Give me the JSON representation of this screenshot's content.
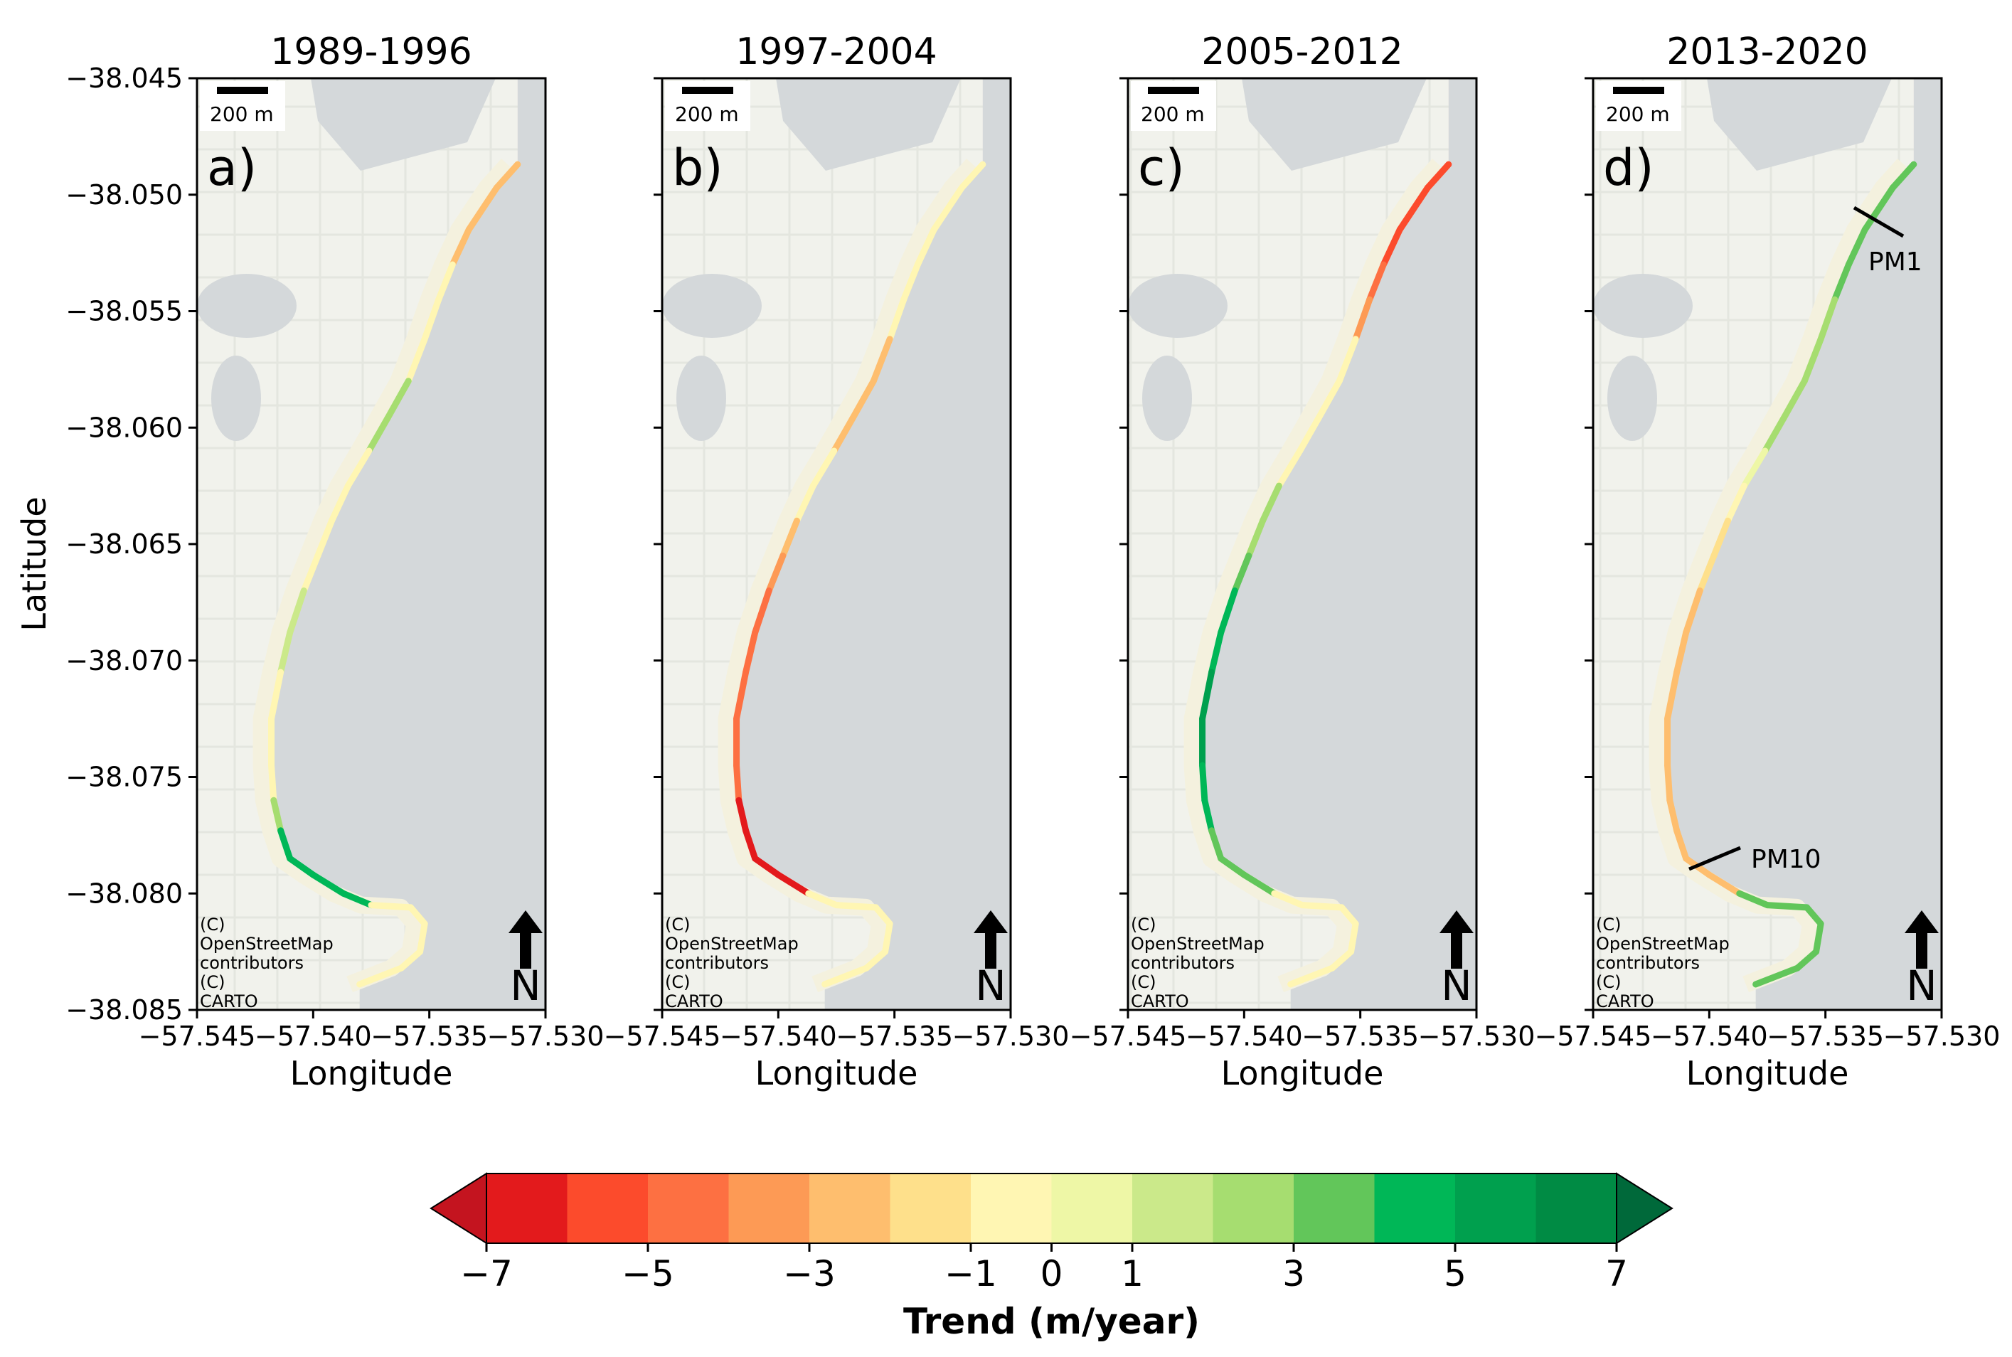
{
  "figure": {
    "ylabel": "Latitude",
    "xlabel": "Longitude",
    "scale_bar_label": "200 m",
    "north_label": "N",
    "credit_lines": [
      "(C)",
      "OpenStreetMap",
      "contributors",
      "(C)",
      "CARTO"
    ]
  },
  "axes": {
    "x_ticks": [
      "−57.545",
      "−57.540",
      "−57.535",
      "−57.530"
    ],
    "y_ticks": [
      "−38.045",
      "−38.050",
      "−38.055",
      "−38.060",
      "−38.065",
      "−38.070",
      "−38.075",
      "−38.080",
      "−38.085"
    ]
  },
  "panels": [
    {
      "title": "1989-1996",
      "letter": "a)"
    },
    {
      "title": "1997-2004",
      "letter": "b)"
    },
    {
      "title": "2005-2012",
      "letter": "c)"
    },
    {
      "title": "2013-2020",
      "letter": "d)"
    }
  ],
  "transects": {
    "pm1": "PM1",
    "pm10": "PM10"
  },
  "colorbar": {
    "label": "Trend (m/year)",
    "ticks": [
      "−7",
      "−5",
      "−3",
      "−1",
      "0",
      "1",
      "3",
      "5",
      "7"
    ],
    "tick_values": [
      -7,
      -5,
      -3,
      -1,
      0,
      1,
      3,
      5,
      7
    ],
    "bins": [
      -7,
      -6,
      -5,
      -4,
      -3,
      -2,
      -1,
      0,
      1,
      2,
      3,
      4,
      5,
      6,
      7
    ],
    "colors": [
      "#e31a1c",
      "#fc4b2c",
      "#fd7042",
      "#fd9a55",
      "#febe6e",
      "#fee08b",
      "#fff6b3",
      "#eef7a6",
      "#cbe98a",
      "#a6dd70",
      "#62c65a",
      "#00b757",
      "#00a04e",
      "#008b44"
    ],
    "under_color": "#c4141f",
    "over_color": "#00693a"
  },
  "chart_data": {
    "type": "map",
    "x_range": [
      -57.545,
      -57.53
    ],
    "y_range": [
      -38.085,
      -38.045
    ],
    "shoreline": [
      [
        -57.5312,
        -38.0487
      ],
      [
        -57.5321,
        -38.0497
      ],
      [
        -57.5333,
        -38.0515
      ],
      [
        -57.534,
        -38.053
      ],
      [
        -57.5346,
        -38.0545
      ],
      [
        -57.5352,
        -38.0562
      ],
      [
        -57.5359,
        -38.058
      ],
      [
        -57.5368,
        -38.0596
      ],
      [
        -57.5376,
        -38.061
      ],
      [
        -57.5385,
        -38.0625
      ],
      [
        -57.5392,
        -38.064
      ],
      [
        -57.5398,
        -38.0655
      ],
      [
        -57.5404,
        -38.067
      ],
      [
        -57.541,
        -38.0688
      ],
      [
        -57.5414,
        -38.0705
      ],
      [
        -57.5418,
        -38.0725
      ],
      [
        -57.5418,
        -38.0745
      ],
      [
        -57.5417,
        -38.076
      ],
      [
        -57.5414,
        -38.0773
      ],
      [
        -57.541,
        -38.0785
      ],
      [
        -57.54,
        -38.0792
      ],
      [
        -57.5387,
        -38.08
      ],
      [
        -57.5375,
        -38.0805
      ],
      [
        -57.5358,
        -38.0806
      ],
      [
        -57.5352,
        -38.0813
      ],
      [
        -57.5354,
        -38.0825
      ],
      [
        -57.5362,
        -38.0832
      ],
      [
        -57.538,
        -38.0839
      ]
    ],
    "series": [
      {
        "name": "1989-1996",
        "trend_bins": [
          4,
          4,
          4,
          6,
          6,
          6,
          9,
          9,
          6,
          6,
          6,
          6,
          8,
          8,
          6,
          6,
          6,
          9,
          11,
          11,
          11,
          11,
          6,
          6,
          6,
          6,
          6
        ]
      },
      {
        "name": "1997-2004",
        "trend_bins": [
          6,
          6,
          6,
          6,
          6,
          4,
          4,
          4,
          6,
          6,
          4,
          3,
          2,
          2,
          2,
          2,
          2,
          0,
          0,
          0,
          0,
          6,
          6,
          6,
          6,
          6,
          6
        ]
      },
      {
        "name": "2005-2012",
        "trend_bins": [
          1,
          1,
          1,
          2,
          3,
          6,
          6,
          6,
          6,
          9,
          9,
          10,
          11,
          11,
          12,
          12,
          11,
          11,
          10,
          10,
          10,
          6,
          6,
          6,
          6,
          6,
          6
        ]
      },
      {
        "name": "2013-2020",
        "trend_bins": [
          10,
          10,
          10,
          10,
          9,
          9,
          9,
          9,
          7,
          6,
          5,
          5,
          4,
          4,
          4,
          4,
          4,
          4,
          4,
          4,
          4,
          10,
          10,
          10,
          10,
          10,
          10
        ]
      }
    ]
  }
}
